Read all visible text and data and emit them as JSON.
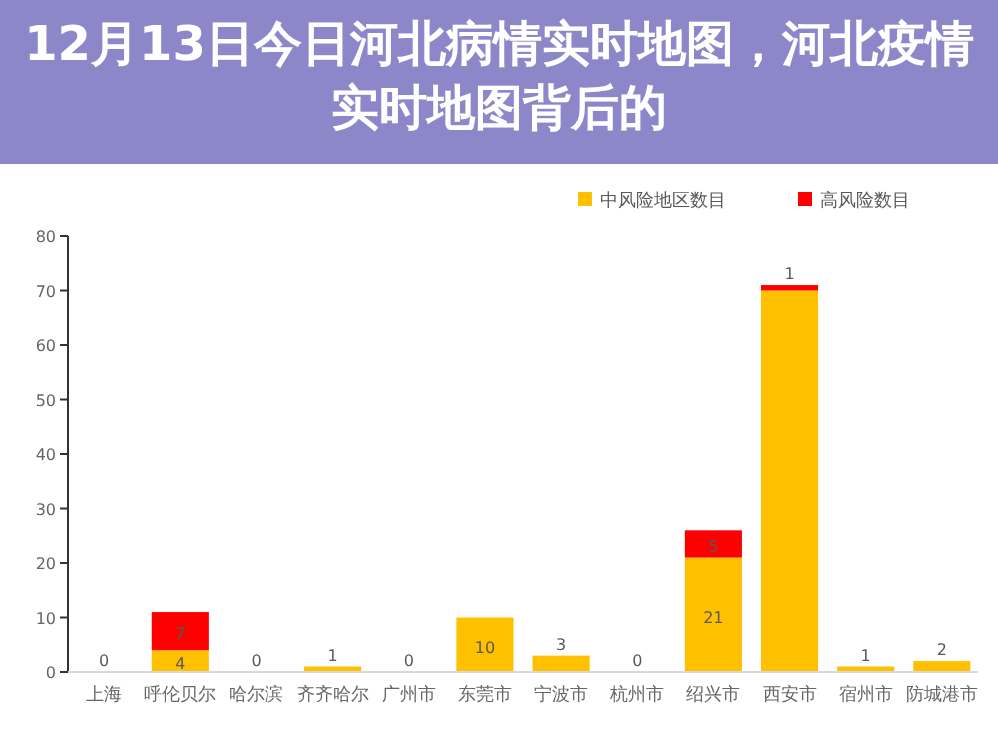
{
  "chart_data": {
    "type": "bar",
    "title": "12月13日今日河北病情实时地图，河北疫情实时地图背后的",
    "categories": [
      "上海",
      "呼伦贝尔",
      "哈尔滨",
      "齐齐哈尔",
      "广州市",
      "东莞市",
      "宁波市",
      "杭州市",
      "绍兴市",
      "西安市",
      "宿州市",
      "防城港市"
    ],
    "series": [
      {
        "name": "中风险地区数目",
        "color": "#ffc000",
        "values": [
          0,
          4,
          0,
          1,
          0,
          10,
          3,
          0,
          21,
          70,
          1,
          2
        ],
        "value_labels": [
          "0",
          "4",
          "0",
          "1",
          "0",
          "10",
          "3",
          "0",
          "21",
          null,
          "1",
          "2"
        ]
      },
      {
        "name": "高风险数目",
        "color": "#ff0000",
        "values": [
          0,
          7,
          0,
          0,
          0,
          0,
          0,
          0,
          5,
          1,
          0,
          0
        ],
        "value_labels": [
          null,
          "7",
          null,
          null,
          null,
          null,
          null,
          null,
          "5",
          "1",
          null,
          null
        ]
      }
    ],
    "stacked": true,
    "ylim": [
      0,
      80
    ],
    "yticks": [
      0,
      10,
      20,
      30,
      40,
      50,
      60,
      70,
      80
    ],
    "legend": "top right",
    "grid": false
  }
}
